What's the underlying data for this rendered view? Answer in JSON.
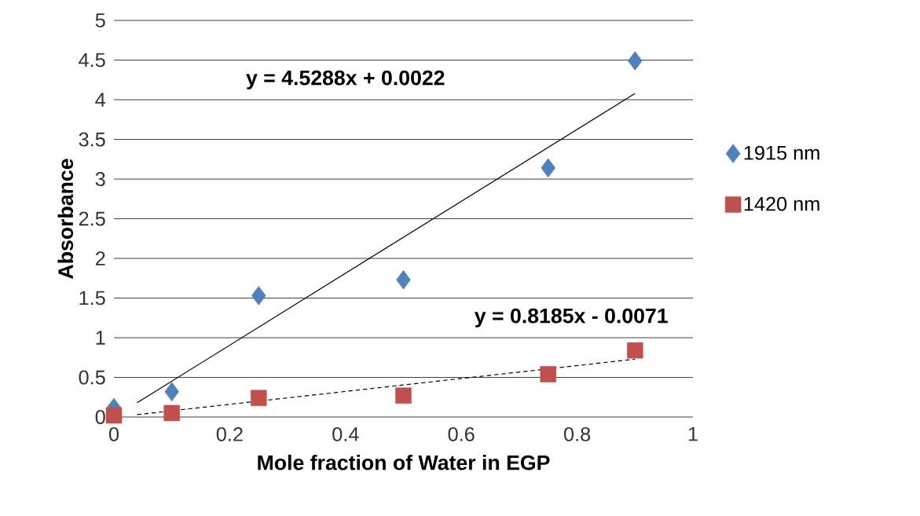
{
  "chart_data": {
    "type": "scatter",
    "xlabel": "Mole fraction of Water in EGP",
    "ylabel": "Absorbance",
    "xlim": [
      0,
      1
    ],
    "xticks": [
      0,
      0.2,
      0.4,
      0.6,
      0.8,
      1
    ],
    "ylim": [
      0,
      5
    ],
    "yticks": [
      0,
      0.5,
      1,
      1.5,
      2,
      2.5,
      3,
      3.5,
      4,
      4.5,
      5
    ],
    "grid": "y",
    "legend": "right",
    "series": [
      {
        "name": "1915 nm",
        "color": "#4f81bd",
        "marker": "diamond",
        "x": [
          0,
          0.1,
          0.25,
          0.5,
          0.75,
          0.9
        ],
        "values": [
          0.12,
          0.32,
          1.53,
          1.73,
          3.14,
          4.49
        ]
      },
      {
        "name": "1420 nm",
        "color": "#c0504d",
        "marker": "square",
        "x": [
          0,
          0.1,
          0.25,
          0.5,
          0.75,
          0.9
        ],
        "values": [
          0.02,
          0.05,
          0.24,
          0.27,
          0.54,
          0.84
        ]
      },
      {
        "type": "line",
        "color": "#000000",
        "line_style": "solid",
        "marker": "none",
        "x": [
          0.04,
          0.9
        ],
        "values": [
          0.18,
          4.08
        ]
      },
      {
        "type": "line",
        "color": "#000000",
        "line_style": "dashed",
        "marker": "none",
        "x": [
          0.04,
          0.9
        ],
        "values": [
          0.03,
          0.73
        ]
      }
    ],
    "annotations": [
      "y = 4.5288x + 0.0022",
      "y = 0.8185x - 0.0071"
    ]
  }
}
